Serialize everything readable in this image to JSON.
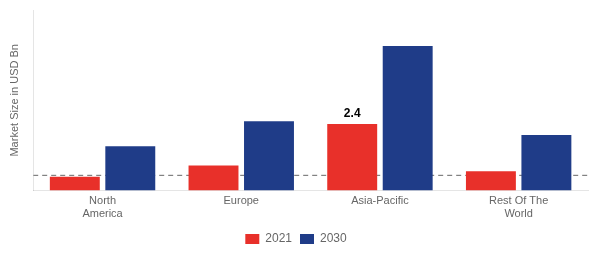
{
  "chart_data": {
    "type": "bar",
    "categories": [
      "North\nAmerica",
      "Europe",
      "Asia-Pacific",
      "Rest Of The\nWorld"
    ],
    "series": [
      {
        "name": "2021",
        "color": "#e8302a",
        "values": [
          0.5,
          0.9,
          2.4,
          0.7
        ]
      },
      {
        "name": "2030",
        "color": "#1f3c88",
        "values": [
          1.6,
          2.5,
          5.2,
          2.0
        ]
      }
    ],
    "ylabel": "Market Size in USD Bn",
    "ylim": [
      0,
      6.5
    ],
    "tick_labels": "x",
    "grid": false,
    "legend": "bottom",
    "hlines": [
      {
        "value": 0.55,
        "line_style": "dashed"
      }
    ],
    "annotations": [
      {
        "text": "2.4",
        "category": "Asia-Pacific",
        "series": "2021",
        "value": 2.4
      }
    ]
  }
}
